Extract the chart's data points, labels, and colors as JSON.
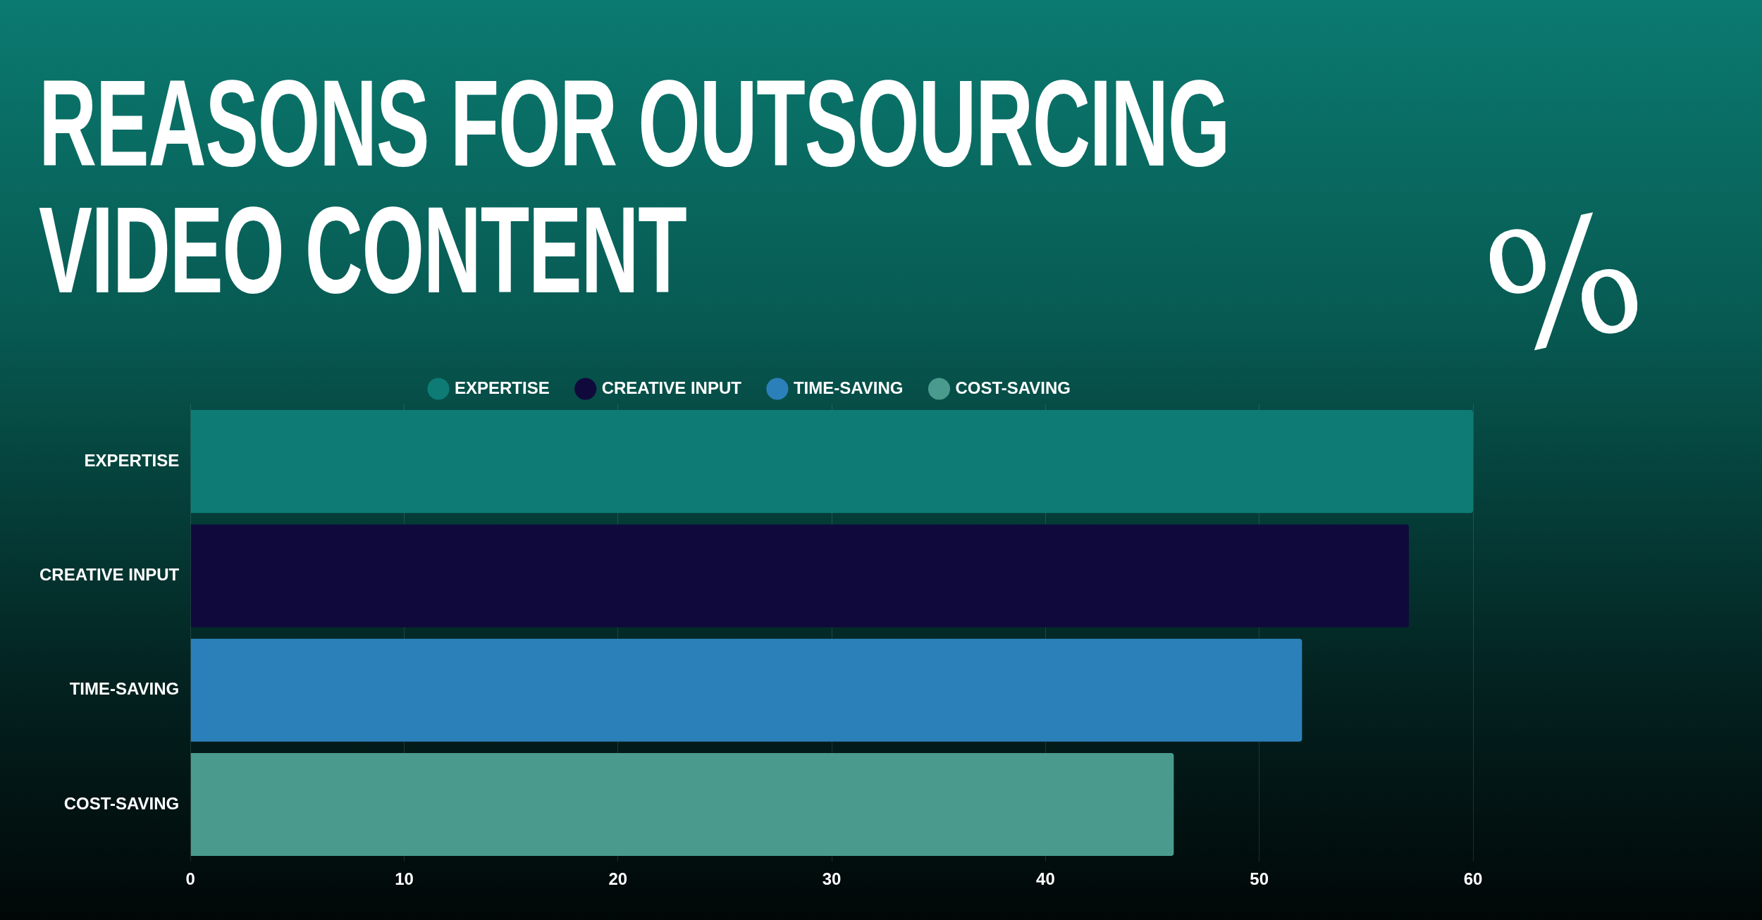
{
  "chart_data": {
    "type": "bar",
    "orientation": "horizontal",
    "title": "REASONS FOR OUTSOURCING VIDEO CONTENT",
    "categories": [
      "EXPERTISE",
      "CREATIVE INPUT",
      "TIME-SAVING",
      "COST-SAVING"
    ],
    "series": [
      {
        "name": "EXPERTISE",
        "color": "#0e7c74",
        "values": [
          60,
          null,
          null,
          null
        ]
      },
      {
        "name": "CREATIVE INPUT",
        "color": "#100a3c",
        "values": [
          null,
          57,
          null,
          null
        ]
      },
      {
        "name": "TIME-SAVING",
        "color": "#2c80ba",
        "values": [
          null,
          null,
          52,
          null
        ]
      },
      {
        "name": "COST-SAVING",
        "color": "#4a9b8e",
        "values": [
          null,
          null,
          null,
          46
        ]
      }
    ],
    "xlim": [
      0,
      60
    ],
    "xticks": [
      0,
      10,
      20,
      30,
      40,
      50,
      60
    ],
    "grid": "x",
    "legend": "top",
    "annotations": [
      "%"
    ]
  }
}
